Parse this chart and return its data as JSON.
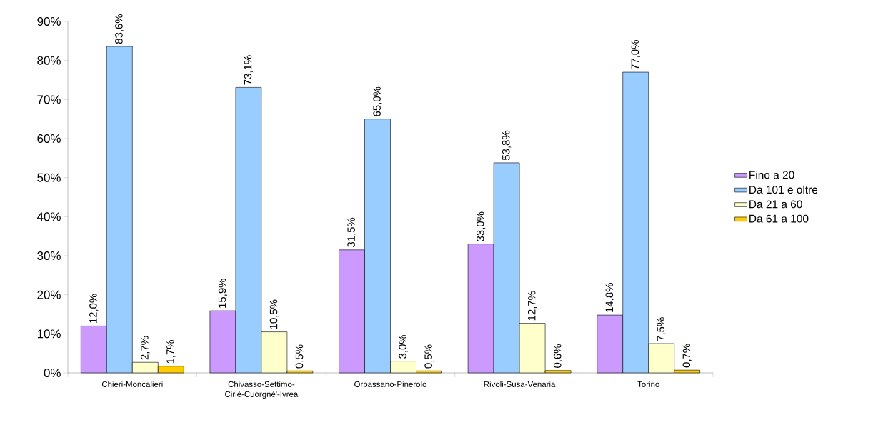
{
  "chart_data": {
    "type": "bar",
    "categories": [
      "Chieri-Moncalieri",
      "Chivasso-Settimo-Ciriè-Cuorgnè'-Ivrea",
      "Orbassano-Pinerolo",
      "Rivoli-Susa-Venaria",
      "Torino"
    ],
    "series": [
      {
        "name": "Fino a 20",
        "color": "#cc99ff",
        "values": [
          12.0,
          15.9,
          31.5,
          33.0,
          14.8
        ],
        "value_labels": [
          "12,0%",
          "15,9%",
          "31,5%",
          "33,0%",
          "14,8%"
        ]
      },
      {
        "name": "Da 101 e oltre",
        "color": "#99ccff",
        "values": [
          83.6,
          73.1,
          65.0,
          53.8,
          77.0
        ],
        "value_labels": [
          "83,6%",
          "73,1%",
          "65,0%",
          "53,8%",
          "77,0%"
        ]
      },
      {
        "name": "Da 21 a 60",
        "color": "#ffffcc",
        "values": [
          2.7,
          10.5,
          3.0,
          12.7,
          7.5
        ],
        "value_labels": [
          "2,7%",
          "10,5%",
          "3,0%",
          "12,7%",
          "7,5%"
        ]
      },
      {
        "name": "Da 61 a 100",
        "color": "#ffcc00",
        "values": [
          1.7,
          0.5,
          0.5,
          0.6,
          0.7
        ],
        "value_labels": [
          "1,7%",
          "0,5%",
          "0,5%",
          "0,6%",
          "0,7%"
        ]
      }
    ],
    "ylim": [
      0,
      90
    ],
    "yticks": [
      {
        "value": 0,
        "label": "0%"
      },
      {
        "value": 10,
        "label": "10%"
      },
      {
        "value": 20,
        "label": "20%"
      },
      {
        "value": 30,
        "label": "30%"
      },
      {
        "value": 40,
        "label": "40%"
      },
      {
        "value": 50,
        "label": "50%"
      },
      {
        "value": 60,
        "label": "60%"
      },
      {
        "value": 70,
        "label": "70%"
      },
      {
        "value": 80,
        "label": "80%"
      },
      {
        "value": 90,
        "label": "90%"
      }
    ],
    "grid": false,
    "legend": "right"
  }
}
